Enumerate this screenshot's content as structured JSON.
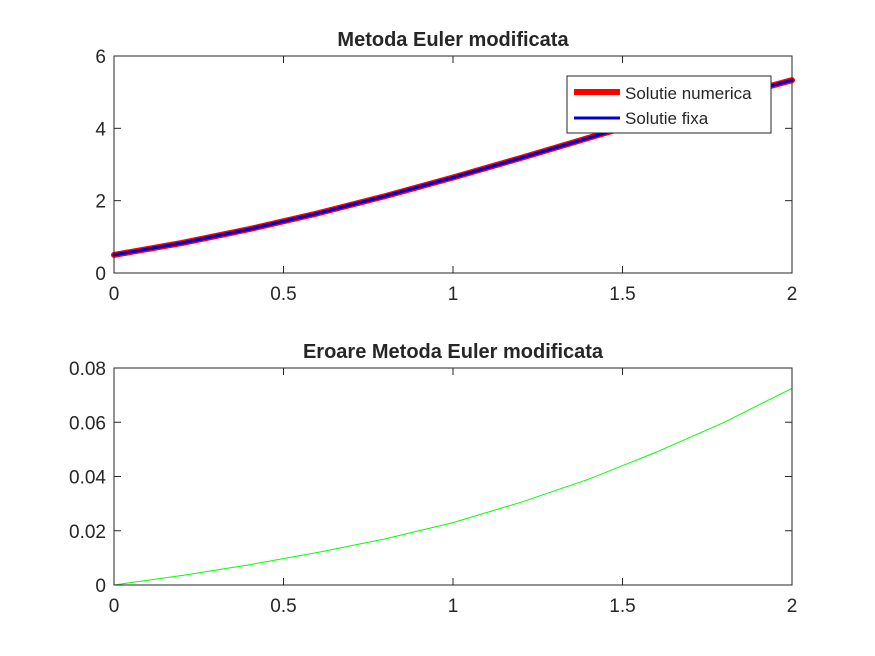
{
  "figure": {
    "background": "#ffffff"
  },
  "chart_data": [
    {
      "type": "line",
      "title": "Metoda Euler modificata",
      "xlabel": "",
      "ylabel": "",
      "xlim": [
        0,
        2
      ],
      "ylim": [
        0,
        6
      ],
      "xticks": [
        0,
        0.5,
        1,
        1.5,
        2
      ],
      "xtick_labels": [
        "0",
        "0.5",
        "1",
        "1.5",
        "2"
      ],
      "yticks": [
        0,
        2,
        4,
        6
      ],
      "ytick_labels": [
        "0",
        "2",
        "4",
        "6"
      ],
      "grid": false,
      "legend": {
        "position": "top-right",
        "entries": [
          "Solutie numerica",
          "Solutie fixa"
        ]
      },
      "x": [
        0,
        0.2,
        0.4,
        0.6,
        0.8,
        1.0,
        1.2,
        1.4,
        1.6,
        1.8,
        2.0
      ],
      "series": [
        {
          "name": "Solutie numerica",
          "color": "#ff0000",
          "values": [
            0.5,
            0.829,
            1.214,
            1.649,
            2.127,
            2.641,
            3.18,
            3.735,
            4.29,
            4.828,
            5.332
          ]
        },
        {
          "name": "Solutie fixa",
          "color": "#0000cd",
          "values": [
            0.5,
            0.829,
            1.214,
            1.649,
            2.127,
            2.641,
            3.18,
            3.735,
            4.29,
            4.828,
            5.332
          ]
        }
      ]
    },
    {
      "type": "line",
      "title": "Eroare Metoda Euler modificata",
      "xlabel": "",
      "ylabel": "",
      "xlim": [
        0,
        2
      ],
      "ylim": [
        0,
        0.08
      ],
      "xticks": [
        0,
        0.5,
        1,
        1.5,
        2
      ],
      "xtick_labels": [
        "0",
        "0.5",
        "1",
        "1.5",
        "2"
      ],
      "yticks": [
        0,
        0.02,
        0.04,
        0.06,
        0.08
      ],
      "ytick_labels": [
        "0",
        "0.02",
        "0.04",
        "0.06",
        "0.08"
      ],
      "grid": false,
      "x": [
        0,
        0.2,
        0.4,
        0.6,
        0.8,
        1.0,
        1.2,
        1.4,
        1.6,
        1.8,
        2.0
      ],
      "series": [
        {
          "color": "#00ff00",
          "values": [
            0,
            0.0035,
            0.0075,
            0.012,
            0.017,
            0.023,
            0.0305,
            0.039,
            0.049,
            0.06,
            0.0725
          ]
        }
      ]
    }
  ]
}
